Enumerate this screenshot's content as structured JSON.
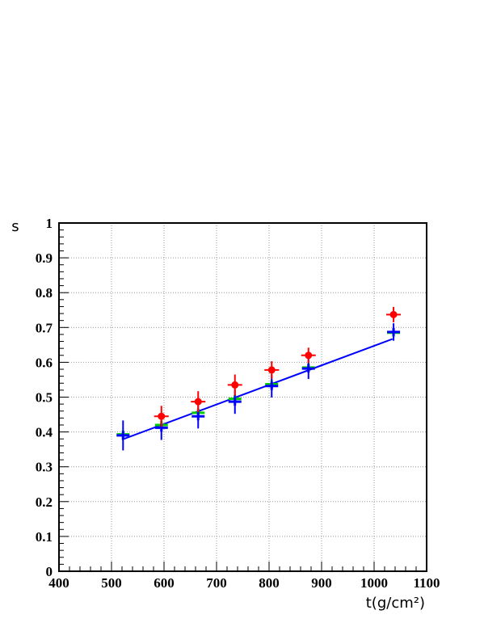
{
  "chart_data": {
    "type": "scatter",
    "title": "",
    "xlabel": "t(g/cm²)",
    "ylabel": "s",
    "xlim": [
      400,
      1100
    ],
    "ylim": [
      0,
      1
    ],
    "x_ticks": [
      400,
      500,
      600,
      700,
      800,
      900,
      1000,
      1100
    ],
    "y_ticks": [
      0,
      0.1,
      0.2,
      0.3,
      0.4,
      0.5,
      0.6,
      0.7,
      0.8,
      0.9,
      1
    ],
    "x_tick_labels": [
      "400",
      "500",
      "600",
      "700",
      "800",
      "900",
      "1000",
      "1100"
    ],
    "y_tick_labels": [
      "0",
      "0.1",
      "0.2",
      "0.3",
      "0.4",
      "0.5",
      "0.6",
      "0.7",
      "0.8",
      "0.9",
      "1"
    ],
    "grid": true,
    "legend": "none",
    "series": [
      {
        "color": "#ff0000",
        "marker": "circle",
        "points": [
          {
            "x": 595,
            "y": 0.445,
            "yerr": 0.03
          },
          {
            "x": 665,
            "y": 0.487,
            "yerr": 0.03
          },
          {
            "x": 735,
            "y": 0.535,
            "yerr": 0.03
          },
          {
            "x": 805,
            "y": 0.578,
            "yerr": 0.025
          },
          {
            "x": 875,
            "y": 0.62,
            "yerr": 0.022
          },
          {
            "x": 1037,
            "y": 0.737,
            "yerr": 0.022
          }
        ]
      },
      {
        "color": "#00cc00",
        "marker": "cross",
        "points": [
          {
            "x": 522,
            "y": 0.393
          },
          {
            "x": 595,
            "y": 0.42
          },
          {
            "x": 665,
            "y": 0.455
          },
          {
            "x": 735,
            "y": 0.495
          },
          {
            "x": 805,
            "y": 0.537
          },
          {
            "x": 875,
            "y": 0.585
          },
          {
            "x": 1037,
            "y": 0.685
          }
        ]
      },
      {
        "color": "#0000ff",
        "marker": "cross",
        "points": [
          {
            "x": 522,
            "y": 0.39,
            "yerr": 0.043
          },
          {
            "x": 595,
            "y": 0.412,
            "yerr": 0.035
          },
          {
            "x": 665,
            "y": 0.445,
            "yerr": 0.035
          },
          {
            "x": 735,
            "y": 0.487,
            "yerr": 0.035
          },
          {
            "x": 805,
            "y": 0.532,
            "yerr": 0.033
          },
          {
            "x": 875,
            "y": 0.582,
            "yerr": 0.03
          },
          {
            "x": 1037,
            "y": 0.687,
            "yerr": 0.025
          }
        ]
      }
    ],
    "fit_line": {
      "color": "#0000ff",
      "x": [
        520,
        1035
      ],
      "y": [
        0.378,
        0.667
      ]
    }
  }
}
